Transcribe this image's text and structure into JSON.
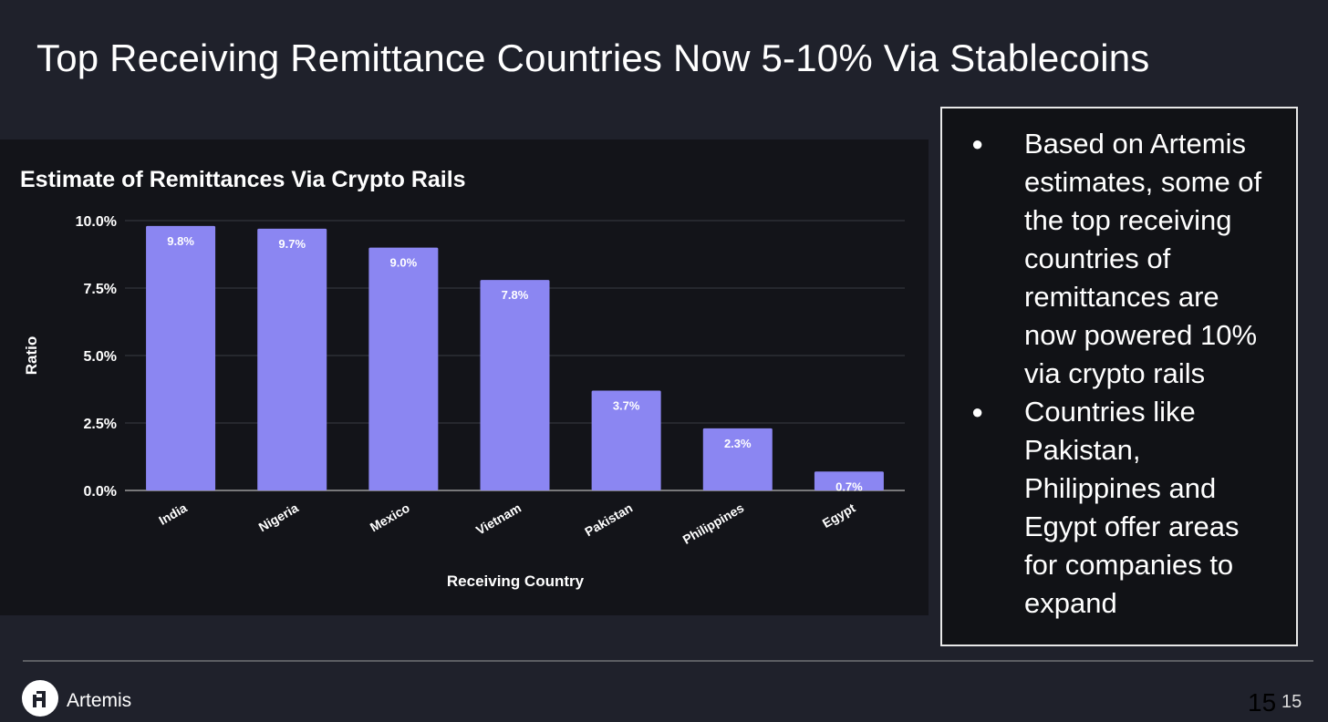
{
  "slide": {
    "title": "Top Receiving Remittance Countries Now 5-10% Via Stablecoins",
    "bullets": [
      "Based on Artemis estimates, some of the top receiving countries of remittances are now powered 10% via crypto rails",
      "Countries like Pakistan, Philippines and Egypt offer areas for companies to expand"
    ],
    "brand": "Artemis",
    "page_number": "15",
    "page_number_small": "15"
  },
  "chart_data": {
    "type": "bar",
    "title": "Estimate of Remittances Via Crypto Rails",
    "xlabel": "Receiving Country",
    "ylabel": "Ratio",
    "categories": [
      "India",
      "Nigeria",
      "Mexico",
      "Vietnam",
      "Pakistan",
      "Philippines",
      "Egypt"
    ],
    "values": [
      9.8,
      9.7,
      9.0,
      7.8,
      3.7,
      2.3,
      0.7
    ],
    "data_labels": [
      "9.8%",
      "9.7%",
      "9.0%",
      "7.8%",
      "3.7%",
      "2.3%",
      "0.7%"
    ],
    "yticks": [
      "0.0%",
      "2.5%",
      "5.0%",
      "7.5%",
      "10.0%"
    ],
    "ytick_values": [
      0,
      2.5,
      5,
      7.5,
      10
    ],
    "ylim": [
      0,
      10
    ],
    "grid": true,
    "bar_color": "#8b86f2"
  }
}
